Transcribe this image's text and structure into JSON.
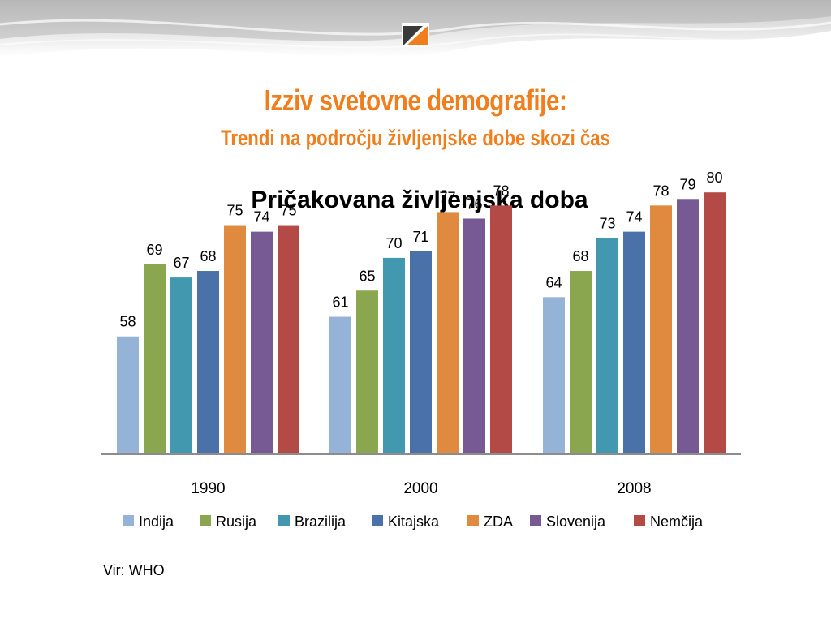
{
  "slide": {
    "title": "Izziv svetovne demografije:",
    "subtitle": "Trendi na področju življenjske dobe skozi čas",
    "source": "Vir: WHO"
  },
  "chart_data": {
    "type": "bar",
    "title": "Pričakovana življenjska doba",
    "xlabel": "",
    "ylabel": "",
    "ylim": [
      40,
      82
    ],
    "grid": false,
    "legend_position": "bottom",
    "categories": [
      "1990",
      "2000",
      "2008"
    ],
    "series": [
      {
        "name": "Indija",
        "color": "#95b3d7",
        "values": [
          58,
          61,
          64
        ]
      },
      {
        "name": "Rusija",
        "color": "#8aa64f",
        "values": [
          69,
          65,
          68
        ]
      },
      {
        "name": "Brazilija",
        "color": "#4198af",
        "values": [
          67,
          70,
          73
        ]
      },
      {
        "name": "Kitajska",
        "color": "#4a72a8",
        "values": [
          68,
          71,
          74
        ]
      },
      {
        "name": "ZDA",
        "color": "#e08a3f",
        "values": [
          75,
          77,
          78
        ]
      },
      {
        "name": "Slovenija",
        "color": "#775a94",
        "values": [
          74,
          76,
          79
        ]
      },
      {
        "name": "Nemčija",
        "color": "#b34a46",
        "values": [
          75,
          78,
          80
        ]
      }
    ]
  }
}
